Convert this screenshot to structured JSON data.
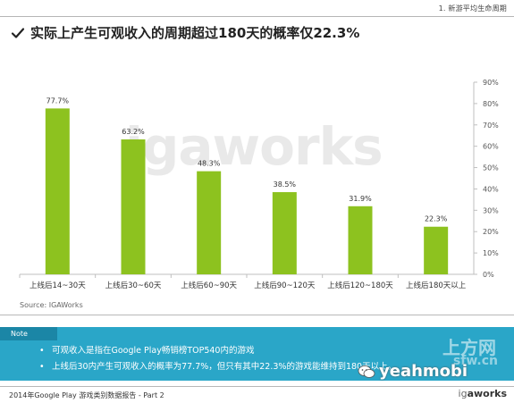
{
  "header": {
    "section_tag": "1. 新游平均生命周期",
    "headline": "实际上产生可观收入的周期超过180天的概率仅22.3%"
  },
  "chart_data": {
    "type": "bar",
    "categories": [
      "上线后14~30天",
      "上线后30~60天",
      "上线后60~90天",
      "上线后90~120天",
      "上线后120~180天",
      "上线后180天以上"
    ],
    "values": [
      77.7,
      63.2,
      48.3,
      38.5,
      31.9,
      22.3
    ],
    "value_labels": [
      "77.7%",
      "63.2%",
      "48.3%",
      "38.5%",
      "31.9%",
      "22.3%"
    ],
    "ylim": [
      0,
      90
    ],
    "yticks": [
      "0%",
      "10%",
      "20%",
      "30%",
      "40%",
      "50%",
      "60%",
      "70%",
      "80%",
      "90%"
    ],
    "y_axis_side": "right",
    "grid": false,
    "bar_color": "#8dc21f",
    "watermark": "igaworks"
  },
  "source": "Source: IGAWorks",
  "note": {
    "tab_label": "Note",
    "items": [
      "可观收入是指在Google Play畅销榜TOP540内的游戏",
      "上线后30内产生可观收入的概率为77.7%，但只有其中22.3%的游戏能维持到180天以上。"
    ]
  },
  "overlay": {
    "site_logo": "上方网",
    "site_domain": "sfw.cn",
    "wechat_handle": "yeahmobi"
  },
  "footer": {
    "report_title": "2014年Google Play 游戏类别数据报告 - Part 2",
    "logo_prefix": "ig",
    "logo_suffix": "aworks"
  },
  "colors": {
    "accent": "#2aa6c8",
    "note_tab": "#1b86a6",
    "bar": "#8dc21f"
  }
}
